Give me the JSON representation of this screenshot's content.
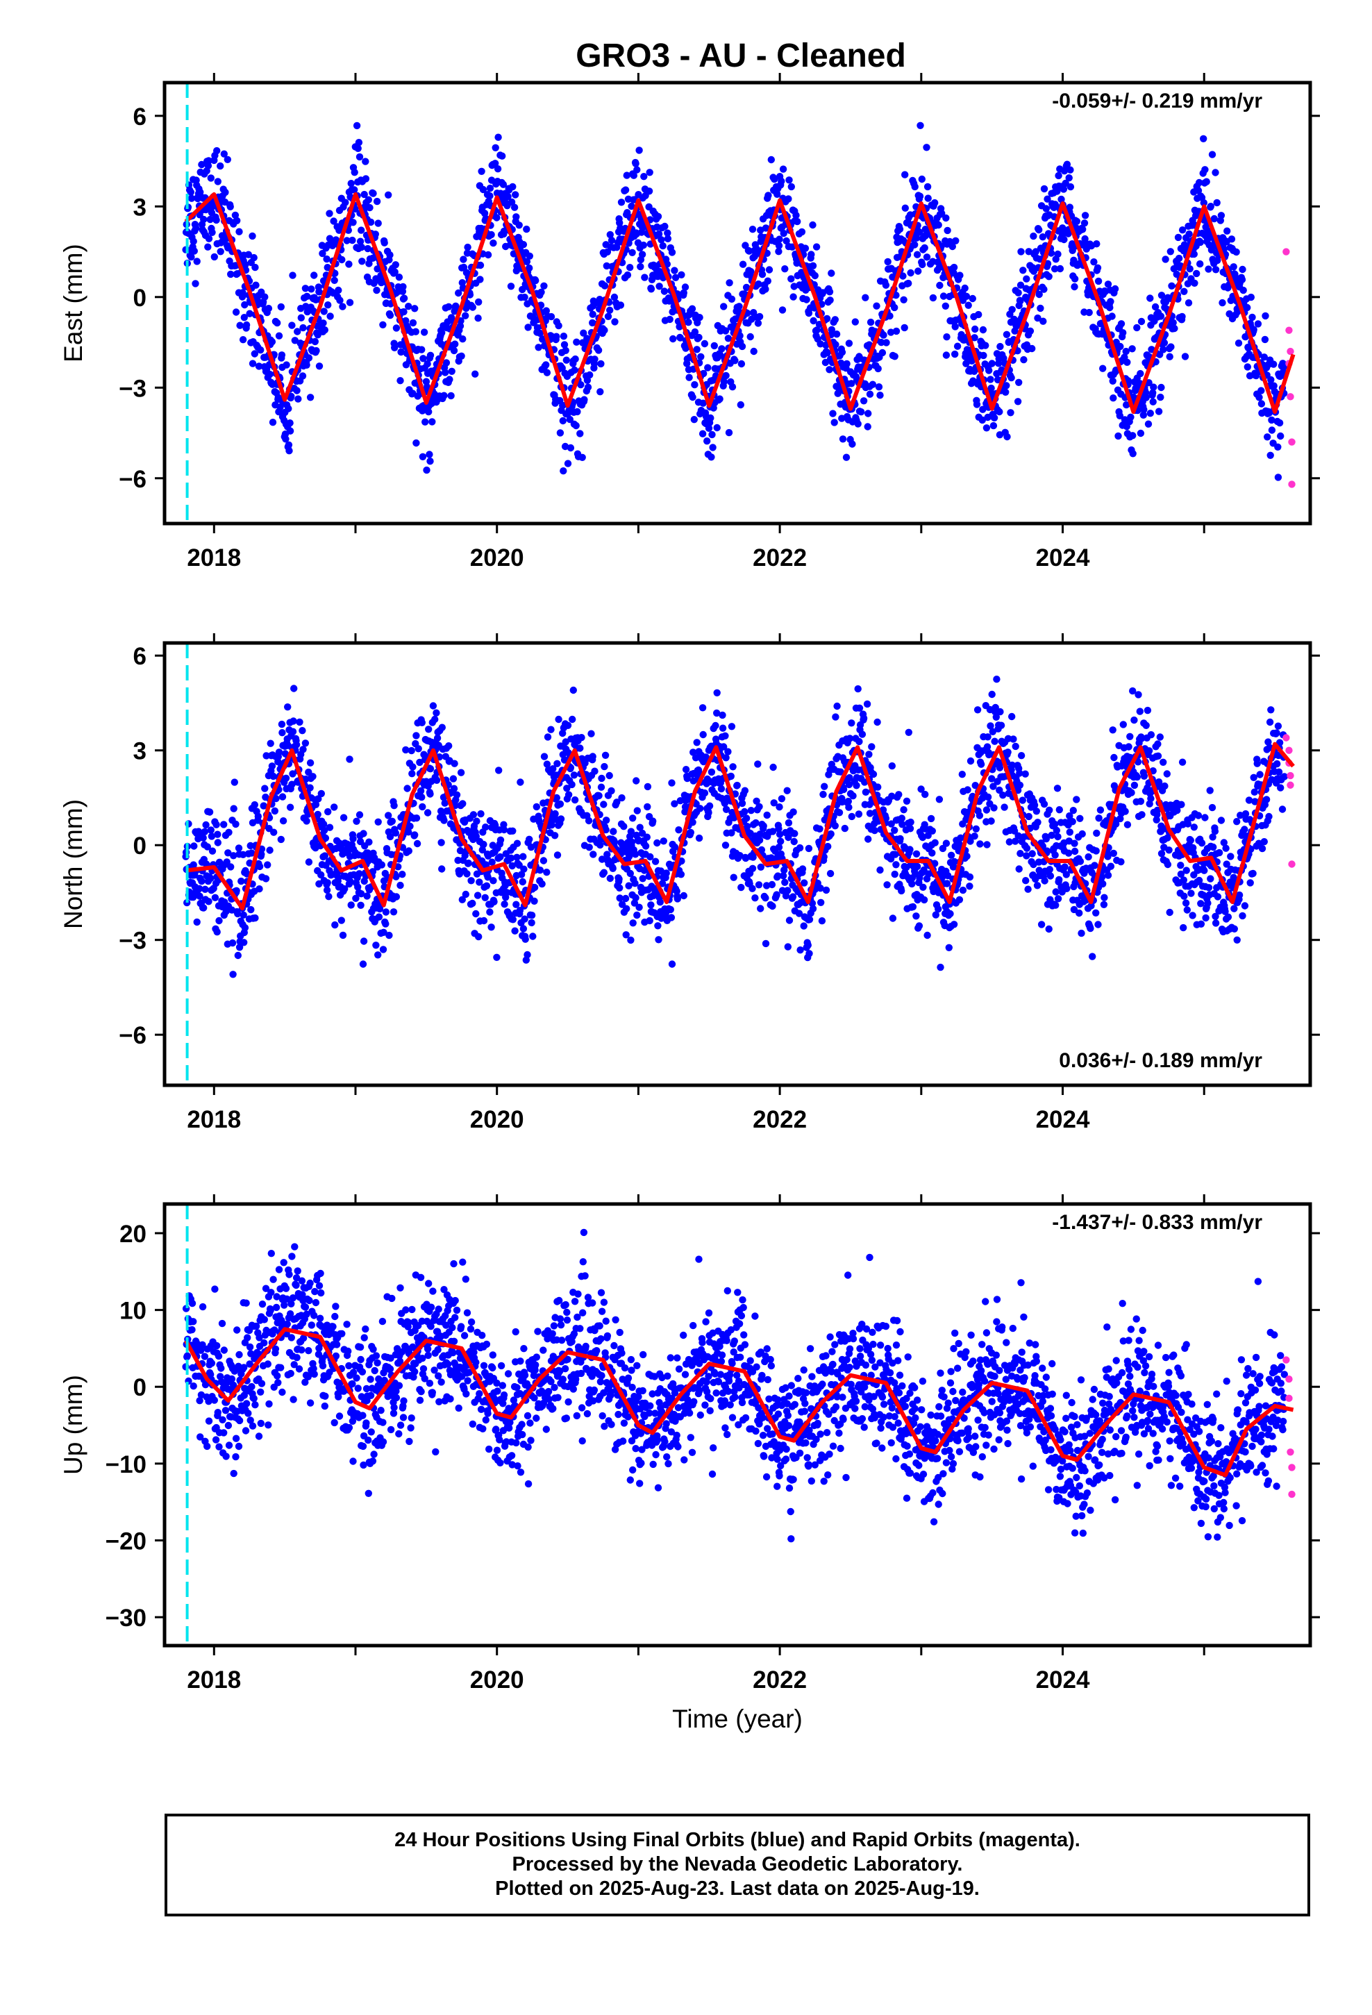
{
  "title": "GRO3  - AU - Cleaned",
  "xlabel": "Time (year)",
  "footer": {
    "line1": "24 Hour Positions Using Final Orbits (blue) and Rapid Orbits (magenta).",
    "line2": "Processed by the Nevada Geodetic Laboratory.",
    "line3": "Plotted on 2025-Aug-23. Last data on 2025-Aug-19."
  },
  "colors": {
    "final_orbits": "#0000ff",
    "rapid_orbits": "#ff33cc",
    "model_fit": "#ff0000",
    "event_marker": "#00e5ee"
  },
  "chart_data": [
    {
      "type": "scatter",
      "component": "east",
      "ylabel": "East (mm)",
      "rate_label": "-0.059+/- 0.219 mm/yr",
      "rate_position": "top-right",
      "xlim": [
        2017.65,
        2025.75
      ],
      "ylim": [
        -7.5,
        7.1
      ],
      "xticks": [
        2018,
        2020,
        2022,
        2024
      ],
      "yticks": [
        6,
        3,
        0,
        -3,
        -6
      ],
      "grid": false,
      "event_marker_x": 2017.81,
      "model": {
        "name": "",
        "x": [
          2017.8,
          2018.0,
          2018.25,
          2018.5,
          2018.75,
          2019.0,
          2019.25,
          2019.5,
          2019.75,
          2020.0,
          2020.25,
          2020.5,
          2020.75,
          2021.0,
          2021.25,
          2021.5,
          2021.75,
          2022.0,
          2022.25,
          2022.5,
          2022.75,
          2023.0,
          2023.25,
          2023.5,
          2023.75,
          2024.0,
          2024.25,
          2024.5,
          2024.75,
          2025.0,
          2025.25,
          2025.5,
          2025.63
        ],
        "y": [
          2.5,
          3.4,
          0.2,
          -3.4,
          -0.3,
          3.4,
          0.2,
          -3.5,
          -0.3,
          3.3,
          0.2,
          -3.6,
          -0.4,
          3.2,
          0.1,
          -3.6,
          -0.4,
          3.2,
          0.0,
          -3.7,
          -0.5,
          3.1,
          0.0,
          -3.7,
          -0.5,
          3.1,
          -0.1,
          -3.8,
          -0.6,
          3.0,
          -0.2,
          -3.8,
          -1.9
        ]
      },
      "rapid_points": {
        "x": [
          2025.58,
          2025.6,
          2025.6,
          2025.61,
          2025.61,
          2025.62,
          2025.62
        ],
        "y": [
          1.5,
          -1.1,
          -2.2,
          -3.3,
          -1.8,
          -4.8,
          -6.2
        ]
      }
    },
    {
      "type": "scatter",
      "component": "north",
      "ylabel": "North (mm)",
      "rate_label": "0.036+/- 0.189 mm/yr",
      "rate_position": "bottom-right",
      "xlim": [
        2017.65,
        2025.75
      ],
      "ylim": [
        -7.6,
        6.4
      ],
      "xticks": [
        2018,
        2020,
        2022,
        2024
      ],
      "yticks": [
        6,
        3,
        0,
        -3,
        -6
      ],
      "grid": false,
      "event_marker_x": 2017.81,
      "model": {
        "name": "",
        "x": [
          2017.8,
          2018.0,
          2018.2,
          2018.4,
          2018.55,
          2018.75,
          2018.9,
          2019.05,
          2019.2,
          2019.4,
          2019.55,
          2019.75,
          2019.9,
          2020.05,
          2020.2,
          2020.4,
          2020.55,
          2020.75,
          2020.9,
          2021.05,
          2021.2,
          2021.4,
          2021.55,
          2021.75,
          2021.9,
          2022.05,
          2022.2,
          2022.4,
          2022.55,
          2022.75,
          2022.9,
          2023.05,
          2023.2,
          2023.4,
          2023.55,
          2023.75,
          2023.9,
          2024.05,
          2024.2,
          2024.4,
          2024.55,
          2024.75,
          2024.9,
          2025.05,
          2025.2,
          2025.4,
          2025.5,
          2025.63
        ],
        "y": [
          -0.8,
          -0.7,
          -2.0,
          1.5,
          3.0,
          0.2,
          -0.8,
          -0.5,
          -1.9,
          1.6,
          3.0,
          0.2,
          -0.8,
          -0.6,
          -1.9,
          1.7,
          3.0,
          0.3,
          -0.6,
          -0.5,
          -1.8,
          1.7,
          3.1,
          0.3,
          -0.6,
          -0.5,
          -1.8,
          1.7,
          3.1,
          0.4,
          -0.5,
          -0.5,
          -1.8,
          1.7,
          3.1,
          0.4,
          -0.5,
          -0.5,
          -1.8,
          1.8,
          3.1,
          0.5,
          -0.5,
          -0.4,
          -1.8,
          1.5,
          3.2,
          2.5
        ]
      },
      "rapid_points": {
        "x": [
          2025.58,
          2025.6,
          2025.6,
          2025.61,
          2025.61,
          2025.62
        ],
        "y": [
          3.4,
          3.0,
          2.6,
          2.2,
          1.9,
          -0.6
        ]
      }
    },
    {
      "type": "scatter",
      "component": "up",
      "ylabel": "Up (mm)",
      "rate_label": "-1.437+/- 0.833 mm/yr",
      "rate_position": "top-right",
      "xlim": [
        2017.65,
        2025.75
      ],
      "ylim": [
        -33.7,
        23.8
      ],
      "xticks": [
        2018,
        2020,
        2022,
        2024
      ],
      "yticks": [
        20,
        10,
        0,
        -10,
        -20,
        -30
      ],
      "grid": false,
      "event_marker_x": 2017.81,
      "model": {
        "name": "",
        "x": [
          2017.8,
          2017.95,
          2018.1,
          2018.3,
          2018.5,
          2018.75,
          2019.0,
          2019.1,
          2019.3,
          2019.5,
          2019.75,
          2020.0,
          2020.1,
          2020.3,
          2020.5,
          2020.75,
          2021.0,
          2021.1,
          2021.3,
          2021.5,
          2021.75,
          2022.0,
          2022.1,
          2022.3,
          2022.5,
          2022.75,
          2023.0,
          2023.1,
          2023.3,
          2023.5,
          2023.75,
          2024.0,
          2024.1,
          2024.3,
          2024.5,
          2024.75,
          2025.0,
          2025.15,
          2025.3,
          2025.5,
          2025.63
        ],
        "y": [
          6.0,
          1.0,
          -1.8,
          3.0,
          7.5,
          6.5,
          -2.0,
          -2.8,
          2.0,
          6.0,
          5.0,
          -3.5,
          -4.0,
          1.0,
          4.5,
          3.5,
          -5.0,
          -6.0,
          -1.0,
          3.0,
          2.0,
          -6.5,
          -7.0,
          -2.0,
          1.5,
          0.5,
          -8.0,
          -8.5,
          -3.0,
          0.5,
          -0.5,
          -9.0,
          -9.5,
          -5.0,
          -1.0,
          -2.0,
          -10.5,
          -11.5,
          -5.5,
          -2.5,
          -3.0
        ]
      },
      "rapid_points": {
        "x": [
          2025.58,
          2025.6,
          2025.6,
          2025.61,
          2025.62,
          2025.62
        ],
        "y": [
          3.5,
          1.0,
          -1.5,
          -8.5,
          -10.5,
          -14.0
        ]
      }
    }
  ]
}
